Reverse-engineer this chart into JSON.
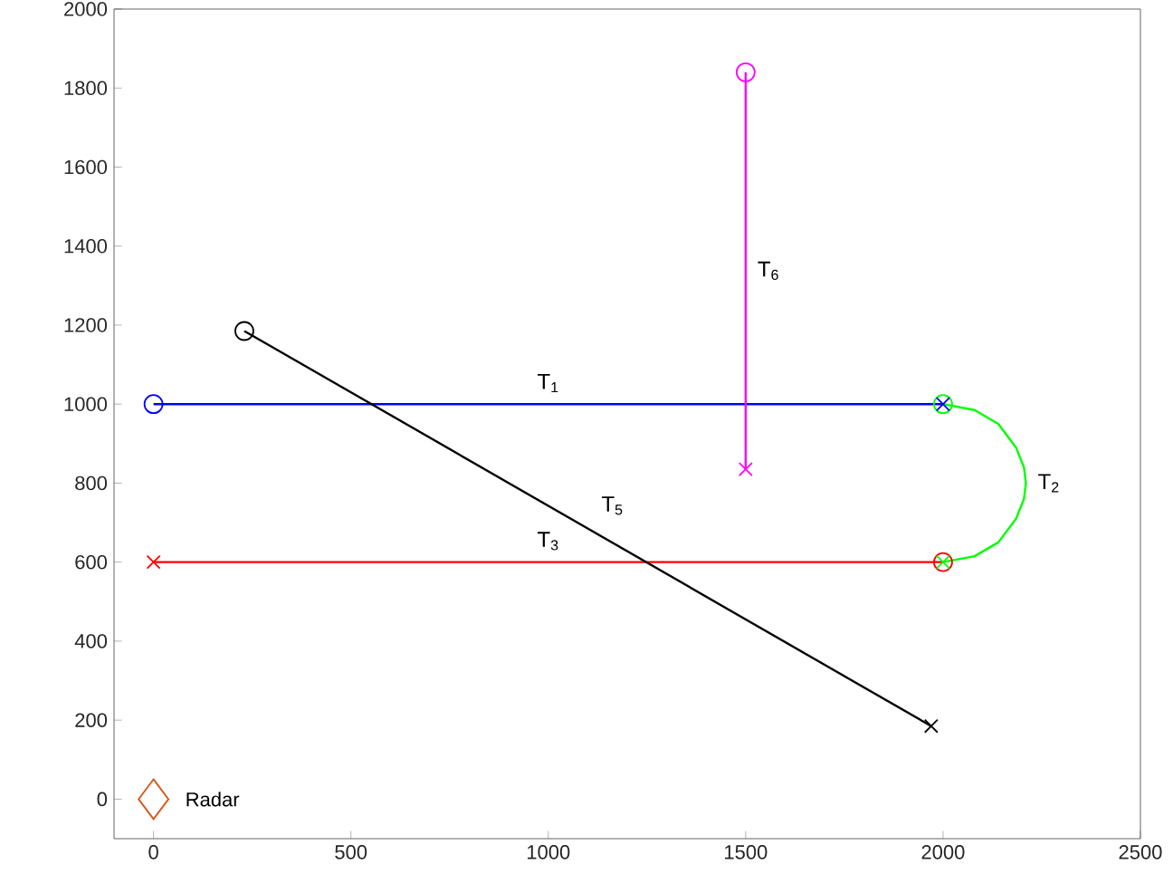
{
  "chart_data": {
    "type": "line",
    "xlim": [
      -100,
      2500
    ],
    "ylim": [
      -100,
      2000
    ],
    "xticks": [
      0,
      500,
      1000,
      1500,
      2000,
      2500
    ],
    "yticks": [
      0,
      200,
      400,
      600,
      800,
      1000,
      1200,
      1400,
      1600,
      1800,
      2000
    ],
    "grid": false,
    "line_style": "solid",
    "series": [
      {
        "name": "T$_{1}$",
        "color": "#0000ff",
        "x": [
          0,
          2000
        ],
        "values": [
          1000,
          1000
        ]
      },
      {
        "name": "T$_{2}$",
        "color": "#00ff00",
        "x": [
          2000,
          2080,
          2140,
          2185,
          2205,
          2210,
          2205,
          2185,
          2140,
          2080,
          2000
        ],
        "values": [
          1000,
          985,
          950,
          890,
          840,
          800,
          760,
          710,
          650,
          615,
          600
        ]
      },
      {
        "name": "T$_{3}$",
        "color": "#ff0000",
        "x": [
          2000,
          0
        ],
        "values": [
          600,
          600
        ]
      },
      {
        "name": "T$_{5}$",
        "color": "#000000",
        "x": [
          230,
          1970
        ],
        "values": [
          1185,
          185
        ]
      },
      {
        "name": "T$_{6}$",
        "color": "#ff00ff",
        "x": [
          1500,
          1500
        ],
        "values": [
          1840,
          835
        ]
      },
      {
        "type": "scatter",
        "marker": "circle",
        "x": [
          0,
          2000,
          2000,
          230,
          1500
        ],
        "values": [
          1000,
          1000,
          600,
          1185,
          1840
        ],
        "colors": [
          "#0000ff",
          "#00ff00",
          "#ff0000",
          "#000000",
          "#ff00ff"
        ]
      },
      {
        "type": "scatter",
        "marker": "cross",
        "x": [
          2000,
          2000,
          0,
          1970,
          1500
        ],
        "values": [
          1000,
          600,
          600,
          185,
          835
        ],
        "colors": [
          "#0000ff",
          "#00ff00",
          "#ff0000",
          "#000000",
          "#ff00ff"
        ]
      },
      {
        "type": "scatter",
        "marker": "diamond",
        "name": "Radar",
        "color": "#d95319",
        "x": [
          0
        ],
        "values": [
          0
        ]
      }
    ]
  }
}
